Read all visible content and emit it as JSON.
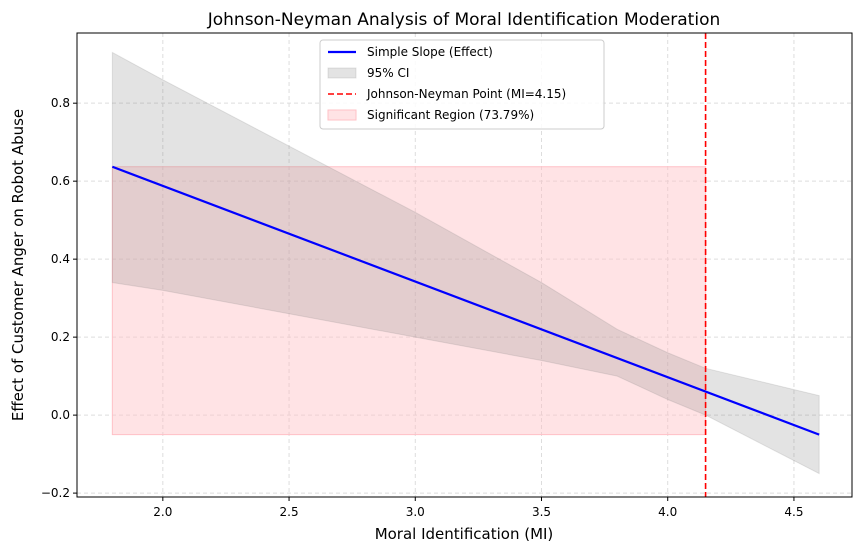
{
  "chart_data": {
    "type": "line",
    "title": "Johnson-Neyman Analysis of Moral Identification Moderation",
    "xlabel": "Moral Identification (MI)",
    "ylabel": "Effect of Customer Anger on Robot Abuse",
    "xlim": [
      1.66,
      4.73
    ],
    "ylim": [
      -0.21,
      0.98
    ],
    "xticks": [
      2.0,
      2.5,
      3.0,
      3.5,
      4.0,
      4.5
    ],
    "xtick_labels": [
      "2.0",
      "2.5",
      "3.0",
      "3.5",
      "4.0",
      "4.5"
    ],
    "yticks": [
      -0.2,
      0.0,
      0.2,
      0.4,
      0.6,
      0.8
    ],
    "ytick_labels": [
      "−0.2",
      "0.0",
      "0.2",
      "0.4",
      "0.6",
      "0.8"
    ],
    "grid": true,
    "legend_position": "top-center",
    "series": [
      {
        "name": "Simple Slope (Effect)",
        "color": "#0000ff",
        "x": [
          1.8,
          4.6
        ],
        "y": [
          0.637,
          -0.05
        ]
      },
      {
        "name": "95% CI",
        "color": "#808080",
        "x": [
          1.8,
          2.0,
          2.5,
          3.0,
          3.5,
          3.8,
          4.0,
          4.15,
          4.6
        ],
        "upper": [
          0.93,
          0.86,
          0.69,
          0.52,
          0.34,
          0.22,
          0.16,
          0.12,
          0.05
        ],
        "lower": [
          0.34,
          0.32,
          0.26,
          0.2,
          0.14,
          0.1,
          0.04,
          0.0,
          -0.15
        ]
      },
      {
        "name": "Johnson-Neyman Point (MI=4.15)",
        "color": "#ff0000",
        "x": 4.15
      },
      {
        "name": "Significant Region (73.79%)",
        "color": "#ffc0c6",
        "x": [
          1.8,
          4.15
        ],
        "y": [
          -0.05,
          0.637
        ]
      }
    ]
  }
}
